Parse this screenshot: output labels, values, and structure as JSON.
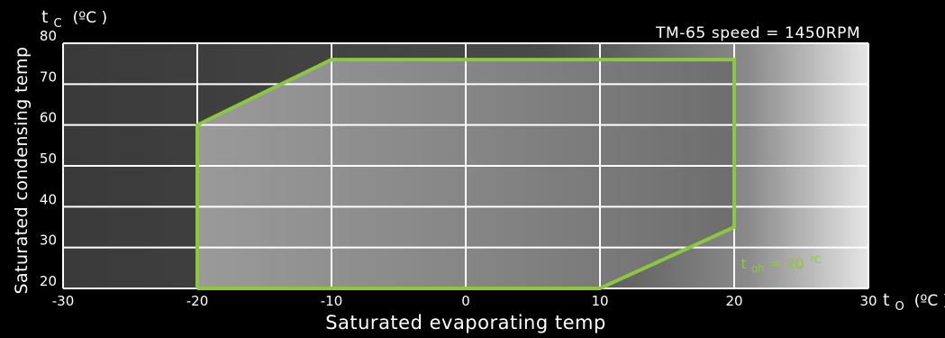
{
  "chart_data": {
    "type": "area",
    "title": "TM-65 speed = 1450RPM",
    "xlabel": "Saturated evaporating temp",
    "ylabel": "Saturated condensing temp",
    "x_axis_symbol": "t",
    "x_axis_subscript": "O",
    "x_axis_unit": "(ºC )",
    "y_axis_symbol": "t",
    "y_axis_subscript": "C",
    "y_axis_unit": "(ºC )",
    "xlim": [
      -30,
      30
    ],
    "ylim": [
      20,
      80
    ],
    "x_ticks": [
      -30,
      -20,
      -10,
      0,
      10,
      20,
      30
    ],
    "y_ticks": [
      20,
      30,
      40,
      50,
      60,
      70,
      80
    ],
    "grid": true,
    "envelope": {
      "x": [
        -20,
        -20,
        -10,
        20,
        20,
        10,
        -20
      ],
      "y": [
        20,
        60,
        76,
        76,
        35,
        20,
        20
      ]
    },
    "annotation": {
      "symbol": "t",
      "subscript": "oh",
      "text": " = 20",
      "unit": "ºC",
      "x": 20.5,
      "y": 26
    },
    "colors": {
      "envelope_line": "#8dc63f",
      "annotation": "#8dc63f",
      "grid": "#ffffff",
      "text": "#ffffff"
    }
  }
}
